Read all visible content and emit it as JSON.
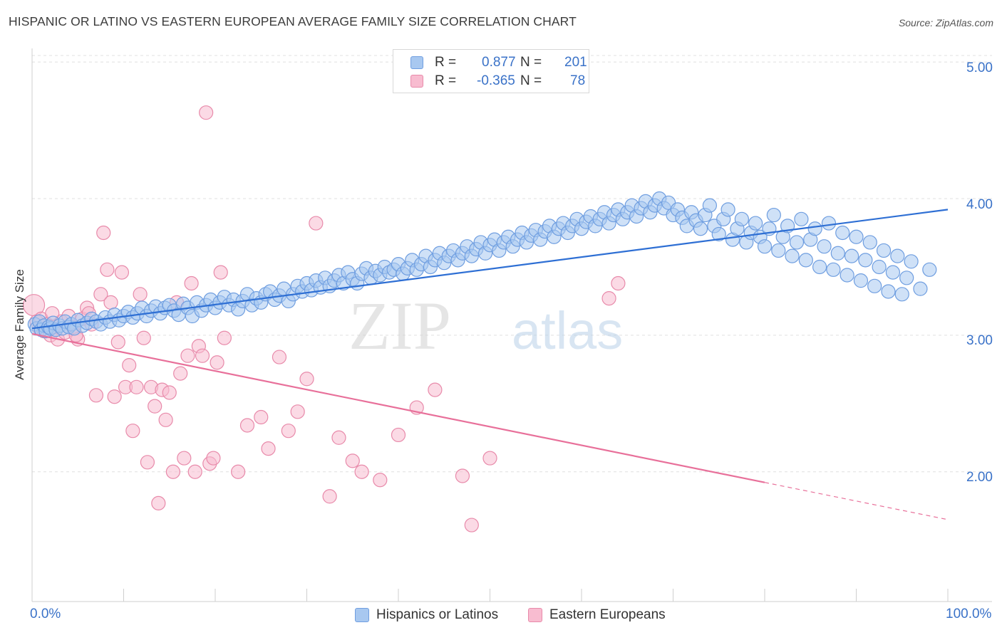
{
  "title": "HISPANIC OR LATINO VS EASTERN EUROPEAN AVERAGE FAMILY SIZE CORRELATION CHART",
  "source": "Source: ZipAtlas.com",
  "watermark": {
    "left": "ZIP",
    "right": "atlas"
  },
  "legend": {
    "r_label": "R =",
    "n_label": "N =",
    "rows": [
      {
        "r": "0.877",
        "n": "201",
        "color": "#a8c8f0",
        "border": "#6f9ee0"
      },
      {
        "r": "-0.365",
        "n": "78",
        "color": "#f8bcd0",
        "border": "#e88aaa"
      }
    ]
  },
  "colors": {
    "blue_fill": "#a8c8f0",
    "blue_stroke": "#6f9ee0",
    "blue_line": "#2e6fd4",
    "pink_fill": "#f8bcd0",
    "pink_stroke": "#e88aaa",
    "pink_line": "#e8709a",
    "axis_text": "#3a72c8",
    "grid": "#e0e0e0"
  },
  "chart_data": {
    "type": "scatter",
    "title": "HISPANIC OR LATINO VS EASTERN EUROPEAN AVERAGE FAMILY SIZE CORRELATION CHART",
    "xlabel": "",
    "ylabel": "Average Family Size",
    "xlim": [
      0,
      100
    ],
    "ylim": [
      1.05,
      5.1
    ],
    "x_tick_labels": [
      "0.0%",
      "100.0%"
    ],
    "y_ticks": [
      2.0,
      3.0,
      4.0,
      5.0
    ],
    "y_tick_labels": [
      "2.00",
      "3.00",
      "4.00",
      "5.00"
    ],
    "grid": true,
    "legend_position": "bottom-center",
    "series": [
      {
        "name": "Hispanics or Latinos",
        "color": "#a8c8f0",
        "trend": {
          "x": [
            0,
            100
          ],
          "y": [
            3.05,
            3.92
          ],
          "dashed_from": null
        },
        "points": [
          [
            0.3,
            3.08
          ],
          [
            0.5,
            3.05
          ],
          [
            0.8,
            3.1
          ],
          [
            1.0,
            3.04
          ],
          [
            1.3,
            3.07
          ],
          [
            1.5,
            3.03
          ],
          [
            1.8,
            3.06
          ],
          [
            2.0,
            3.05
          ],
          [
            2.3,
            3.09
          ],
          [
            2.6,
            3.04
          ],
          [
            3.0,
            3.07
          ],
          [
            3.3,
            3.05
          ],
          [
            3.6,
            3.1
          ],
          [
            4.0,
            3.06
          ],
          [
            4.3,
            3.08
          ],
          [
            4.6,
            3.05
          ],
          [
            5.0,
            3.11
          ],
          [
            5.5,
            3.07
          ],
          [
            6.0,
            3.09
          ],
          [
            6.5,
            3.12
          ],
          [
            7.0,
            3.1
          ],
          [
            7.5,
            3.08
          ],
          [
            8.0,
            3.13
          ],
          [
            8.5,
            3.1
          ],
          [
            9.0,
            3.15
          ],
          [
            9.5,
            3.11
          ],
          [
            10.0,
            3.14
          ],
          [
            10.5,
            3.17
          ],
          [
            11.0,
            3.13
          ],
          [
            11.5,
            3.16
          ],
          [
            12.0,
            3.2
          ],
          [
            12.5,
            3.14
          ],
          [
            13.0,
            3.18
          ],
          [
            13.5,
            3.21
          ],
          [
            14.0,
            3.16
          ],
          [
            14.5,
            3.2
          ],
          [
            15.0,
            3.22
          ],
          [
            15.5,
            3.18
          ],
          [
            16.0,
            3.15
          ],
          [
            16.5,
            3.23
          ],
          [
            17.0,
            3.2
          ],
          [
            17.5,
            3.14
          ],
          [
            18.0,
            3.24
          ],
          [
            18.5,
            3.18
          ],
          [
            19.0,
            3.22
          ],
          [
            19.5,
            3.26
          ],
          [
            20.0,
            3.2
          ],
          [
            20.5,
            3.24
          ],
          [
            21.0,
            3.28
          ],
          [
            21.5,
            3.22
          ],
          [
            22.0,
            3.26
          ],
          [
            22.5,
            3.19
          ],
          [
            23.0,
            3.25
          ],
          [
            23.5,
            3.3
          ],
          [
            24.0,
            3.22
          ],
          [
            24.5,
            3.27
          ],
          [
            25.0,
            3.24
          ],
          [
            25.5,
            3.3
          ],
          [
            26.0,
            3.32
          ],
          [
            26.5,
            3.26
          ],
          [
            27.0,
            3.29
          ],
          [
            27.5,
            3.34
          ],
          [
            28.0,
            3.25
          ],
          [
            28.5,
            3.3
          ],
          [
            29.0,
            3.36
          ],
          [
            29.5,
            3.32
          ],
          [
            30.0,
            3.38
          ],
          [
            30.5,
            3.33
          ],
          [
            31.0,
            3.4
          ],
          [
            31.5,
            3.35
          ],
          [
            32.0,
            3.42
          ],
          [
            32.5,
            3.36
          ],
          [
            33.0,
            3.4
          ],
          [
            33.5,
            3.44
          ],
          [
            34.0,
            3.38
          ],
          [
            34.5,
            3.46
          ],
          [
            35.0,
            3.41
          ],
          [
            35.5,
            3.38
          ],
          [
            36.0,
            3.45
          ],
          [
            36.5,
            3.49
          ],
          [
            37.0,
            3.42
          ],
          [
            37.5,
            3.47
          ],
          [
            38.0,
            3.44
          ],
          [
            38.5,
            3.5
          ],
          [
            39.0,
            3.46
          ],
          [
            39.5,
            3.48
          ],
          [
            40.0,
            3.52
          ],
          [
            40.5,
            3.45
          ],
          [
            41.0,
            3.49
          ],
          [
            41.5,
            3.55
          ],
          [
            42.0,
            3.48
          ],
          [
            42.5,
            3.52
          ],
          [
            43.0,
            3.58
          ],
          [
            43.5,
            3.5
          ],
          [
            44.0,
            3.55
          ],
          [
            44.5,
            3.6
          ],
          [
            45.0,
            3.53
          ],
          [
            45.5,
            3.58
          ],
          [
            46.0,
            3.62
          ],
          [
            46.5,
            3.55
          ],
          [
            47.0,
            3.6
          ],
          [
            47.5,
            3.65
          ],
          [
            48.0,
            3.58
          ],
          [
            48.5,
            3.63
          ],
          [
            49.0,
            3.68
          ],
          [
            49.5,
            3.6
          ],
          [
            50.0,
            3.66
          ],
          [
            50.5,
            3.7
          ],
          [
            51.0,
            3.62
          ],
          [
            51.5,
            3.68
          ],
          [
            52.0,
            3.72
          ],
          [
            52.5,
            3.65
          ],
          [
            53.0,
            3.7
          ],
          [
            53.5,
            3.75
          ],
          [
            54.0,
            3.68
          ],
          [
            54.5,
            3.73
          ],
          [
            55.0,
            3.77
          ],
          [
            55.5,
            3.7
          ],
          [
            56.0,
            3.76
          ],
          [
            56.5,
            3.8
          ],
          [
            57.0,
            3.72
          ],
          [
            57.5,
            3.78
          ],
          [
            58.0,
            3.82
          ],
          [
            58.5,
            3.75
          ],
          [
            59.0,
            3.8
          ],
          [
            59.5,
            3.85
          ],
          [
            60.0,
            3.78
          ],
          [
            60.5,
            3.83
          ],
          [
            61.0,
            3.87
          ],
          [
            61.5,
            3.8
          ],
          [
            62.0,
            3.85
          ],
          [
            62.5,
            3.9
          ],
          [
            63.0,
            3.82
          ],
          [
            63.5,
            3.88
          ],
          [
            64.0,
            3.92
          ],
          [
            64.5,
            3.85
          ],
          [
            65.0,
            3.9
          ],
          [
            65.5,
            3.95
          ],
          [
            66.0,
            3.87
          ],
          [
            66.5,
            3.93
          ],
          [
            67.0,
            3.98
          ],
          [
            67.5,
            3.9
          ],
          [
            68.0,
            3.95
          ],
          [
            68.5,
            4.0
          ],
          [
            69.0,
            3.93
          ],
          [
            69.5,
            3.97
          ],
          [
            70.0,
            3.88
          ],
          [
            70.5,
            3.92
          ],
          [
            71.0,
            3.86
          ],
          [
            71.5,
            3.8
          ],
          [
            72.0,
            3.9
          ],
          [
            72.5,
            3.84
          ],
          [
            73.0,
            3.78
          ],
          [
            73.5,
            3.88
          ],
          [
            74.0,
            3.95
          ],
          [
            74.5,
            3.8
          ],
          [
            75.0,
            3.74
          ],
          [
            75.5,
            3.85
          ],
          [
            76.0,
            3.92
          ],
          [
            76.5,
            3.7
          ],
          [
            77.0,
            3.78
          ],
          [
            77.5,
            3.85
          ],
          [
            78.0,
            3.68
          ],
          [
            78.5,
            3.75
          ],
          [
            79.0,
            3.82
          ],
          [
            79.5,
            3.72
          ],
          [
            80.0,
            3.65
          ],
          [
            80.5,
            3.78
          ],
          [
            81.0,
            3.88
          ],
          [
            81.5,
            3.62
          ],
          [
            82.0,
            3.72
          ],
          [
            82.5,
            3.8
          ],
          [
            83.0,
            3.58
          ],
          [
            83.5,
            3.68
          ],
          [
            84.0,
            3.85
          ],
          [
            84.5,
            3.55
          ],
          [
            85.0,
            3.7
          ],
          [
            85.5,
            3.78
          ],
          [
            86.0,
            3.5
          ],
          [
            86.5,
            3.65
          ],
          [
            87.0,
            3.82
          ],
          [
            87.5,
            3.48
          ],
          [
            88.0,
            3.6
          ],
          [
            88.5,
            3.75
          ],
          [
            89.0,
            3.44
          ],
          [
            89.5,
            3.58
          ],
          [
            90.0,
            3.72
          ],
          [
            90.5,
            3.4
          ],
          [
            91.0,
            3.55
          ],
          [
            91.5,
            3.68
          ],
          [
            92.0,
            3.36
          ],
          [
            92.5,
            3.5
          ],
          [
            93.0,
            3.62
          ],
          [
            93.5,
            3.32
          ],
          [
            94.0,
            3.46
          ],
          [
            94.5,
            3.58
          ],
          [
            95.0,
            3.3
          ],
          [
            95.5,
            3.42
          ],
          [
            96.0,
            3.54
          ],
          [
            97.0,
            3.34
          ],
          [
            98.0,
            3.48
          ]
        ]
      },
      {
        "name": "Eastern Europeans",
        "color": "#f8bcd0",
        "trend": {
          "x": [
            0,
            100
          ],
          "y": [
            3.01,
            1.65
          ],
          "dashed_from": 80
        },
        "points": [
          [
            0.2,
            3.22
          ],
          [
            0.5,
            3.1
          ],
          [
            0.8,
            3.05
          ],
          [
            1.0,
            3.12
          ],
          [
            1.3,
            3.03
          ],
          [
            1.6,
            3.08
          ],
          [
            2.0,
            3.0
          ],
          [
            2.4,
            3.06
          ],
          [
            2.8,
            2.97
          ],
          [
            3.2,
            3.1
          ],
          [
            3.6,
            3.02
          ],
          [
            4.0,
            3.14
          ],
          [
            4.5,
            3.06
          ],
          [
            5.0,
            2.97
          ],
          [
            5.5,
            3.12
          ],
          [
            6.0,
            3.2
          ],
          [
            6.5,
            3.08
          ],
          [
            7.0,
            2.56
          ],
          [
            7.5,
            3.3
          ],
          [
            7.8,
            3.75
          ],
          [
            8.2,
            3.48
          ],
          [
            8.6,
            3.24
          ],
          [
            9.0,
            2.55
          ],
          [
            9.4,
            2.95
          ],
          [
            9.8,
            3.46
          ],
          [
            10.2,
            2.62
          ],
          [
            10.6,
            2.78
          ],
          [
            11.0,
            2.3
          ],
          [
            11.4,
            2.62
          ],
          [
            11.8,
            3.3
          ],
          [
            12.2,
            2.98
          ],
          [
            12.6,
            2.07
          ],
          [
            13.0,
            2.62
          ],
          [
            13.4,
            2.48
          ],
          [
            13.8,
            1.77
          ],
          [
            14.2,
            2.6
          ],
          [
            14.6,
            2.38
          ],
          [
            15.0,
            2.58
          ],
          [
            15.4,
            2.0
          ],
          [
            15.8,
            3.24
          ],
          [
            16.2,
            2.72
          ],
          [
            16.6,
            2.1
          ],
          [
            17.0,
            2.85
          ],
          [
            17.4,
            3.38
          ],
          [
            17.8,
            2.0
          ],
          [
            18.2,
            2.92
          ],
          [
            18.6,
            2.85
          ],
          [
            19.0,
            4.63
          ],
          [
            19.4,
            2.06
          ],
          [
            19.8,
            2.1
          ],
          [
            20.2,
            2.8
          ],
          [
            20.6,
            3.46
          ],
          [
            21.0,
            2.98
          ],
          [
            22.5,
            2.0
          ],
          [
            23.5,
            2.34
          ],
          [
            25.0,
            2.4
          ],
          [
            25.8,
            2.17
          ],
          [
            27.0,
            2.84
          ],
          [
            28.0,
            2.3
          ],
          [
            29.0,
            2.44
          ],
          [
            30.0,
            2.68
          ],
          [
            31.0,
            3.82
          ],
          [
            32.5,
            1.82
          ],
          [
            33.5,
            2.25
          ],
          [
            35.0,
            2.08
          ],
          [
            36.0,
            2.0
          ],
          [
            38.0,
            1.94
          ],
          [
            40.0,
            2.27
          ],
          [
            42.0,
            2.47
          ],
          [
            44.0,
            2.6
          ],
          [
            47.0,
            1.97
          ],
          [
            48.0,
            1.61
          ],
          [
            50.0,
            2.1
          ],
          [
            63.0,
            3.27
          ],
          [
            64.0,
            3.38
          ],
          [
            2.2,
            3.16
          ],
          [
            4.8,
            3.0
          ],
          [
            6.2,
            3.16
          ]
        ]
      }
    ]
  },
  "bottom_legend": [
    {
      "label": "Hispanics or Latinos",
      "color": "#a8c8f0",
      "border": "#6f9ee0"
    },
    {
      "label": "Eastern Europeans",
      "color": "#f8bcd0",
      "border": "#e88aaa"
    }
  ]
}
